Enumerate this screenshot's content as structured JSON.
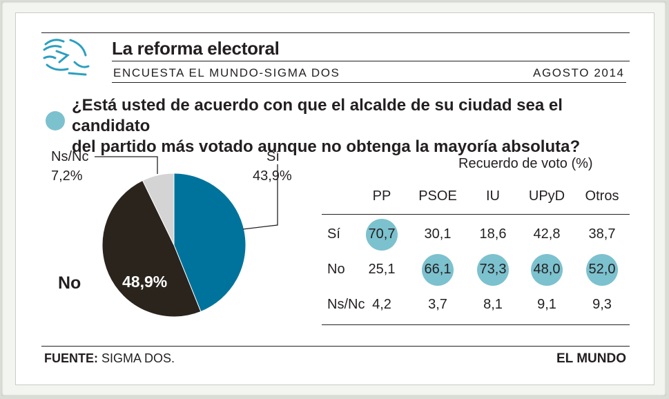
{
  "header": {
    "title": "La reforma electoral",
    "subtitle": "ENCUESTA EL MUNDO-SIGMA DOS",
    "date": "AGOSTO 2014"
  },
  "question": {
    "line1": "¿Está usted de acuerdo con que el alcalde de su ciudad sea el candidato",
    "line2": "del partido más votado aunque no obtenga la mayoría absoluta?"
  },
  "footer": {
    "source_label": "FUENTE:",
    "source_value": "SIGMA DOS.",
    "brand": "EL MUNDO"
  },
  "colors": {
    "si": "#00739c",
    "no": "#2b241d",
    "nsnc": "#d4d4d4",
    "highlight": "#7cc1ce"
  },
  "chart_data": [
    {
      "type": "pie",
      "title": "",
      "slices": [
        {
          "name": "Sí",
          "value": 43.9,
          "label": "43,9%"
        },
        {
          "name": "No",
          "value": 48.9,
          "label": "48,9%"
        },
        {
          "name": "Ns/Nc",
          "value": 7.2,
          "label": "7,2%"
        }
      ]
    },
    {
      "type": "table",
      "title": "Recuerdo de voto (%)",
      "columns": [
        "PP",
        "PSOE",
        "IU",
        "UPyD",
        "Otros"
      ],
      "rows": [
        {
          "label": "Sí",
          "values": [
            "70,7",
            "30,1",
            "18,6",
            "42,8",
            "38,7"
          ],
          "highlight": [
            true,
            false,
            false,
            false,
            false
          ]
        },
        {
          "label": "No",
          "values": [
            "25,1",
            "66,1",
            "73,3",
            "48,0",
            "52,0"
          ],
          "highlight": [
            false,
            true,
            true,
            true,
            true
          ]
        },
        {
          "label": "Ns/Nc",
          "values": [
            "4,2",
            "3,7",
            "8,1",
            "9,1",
            "9,3"
          ],
          "highlight": [
            false,
            false,
            false,
            false,
            false
          ]
        }
      ]
    }
  ]
}
